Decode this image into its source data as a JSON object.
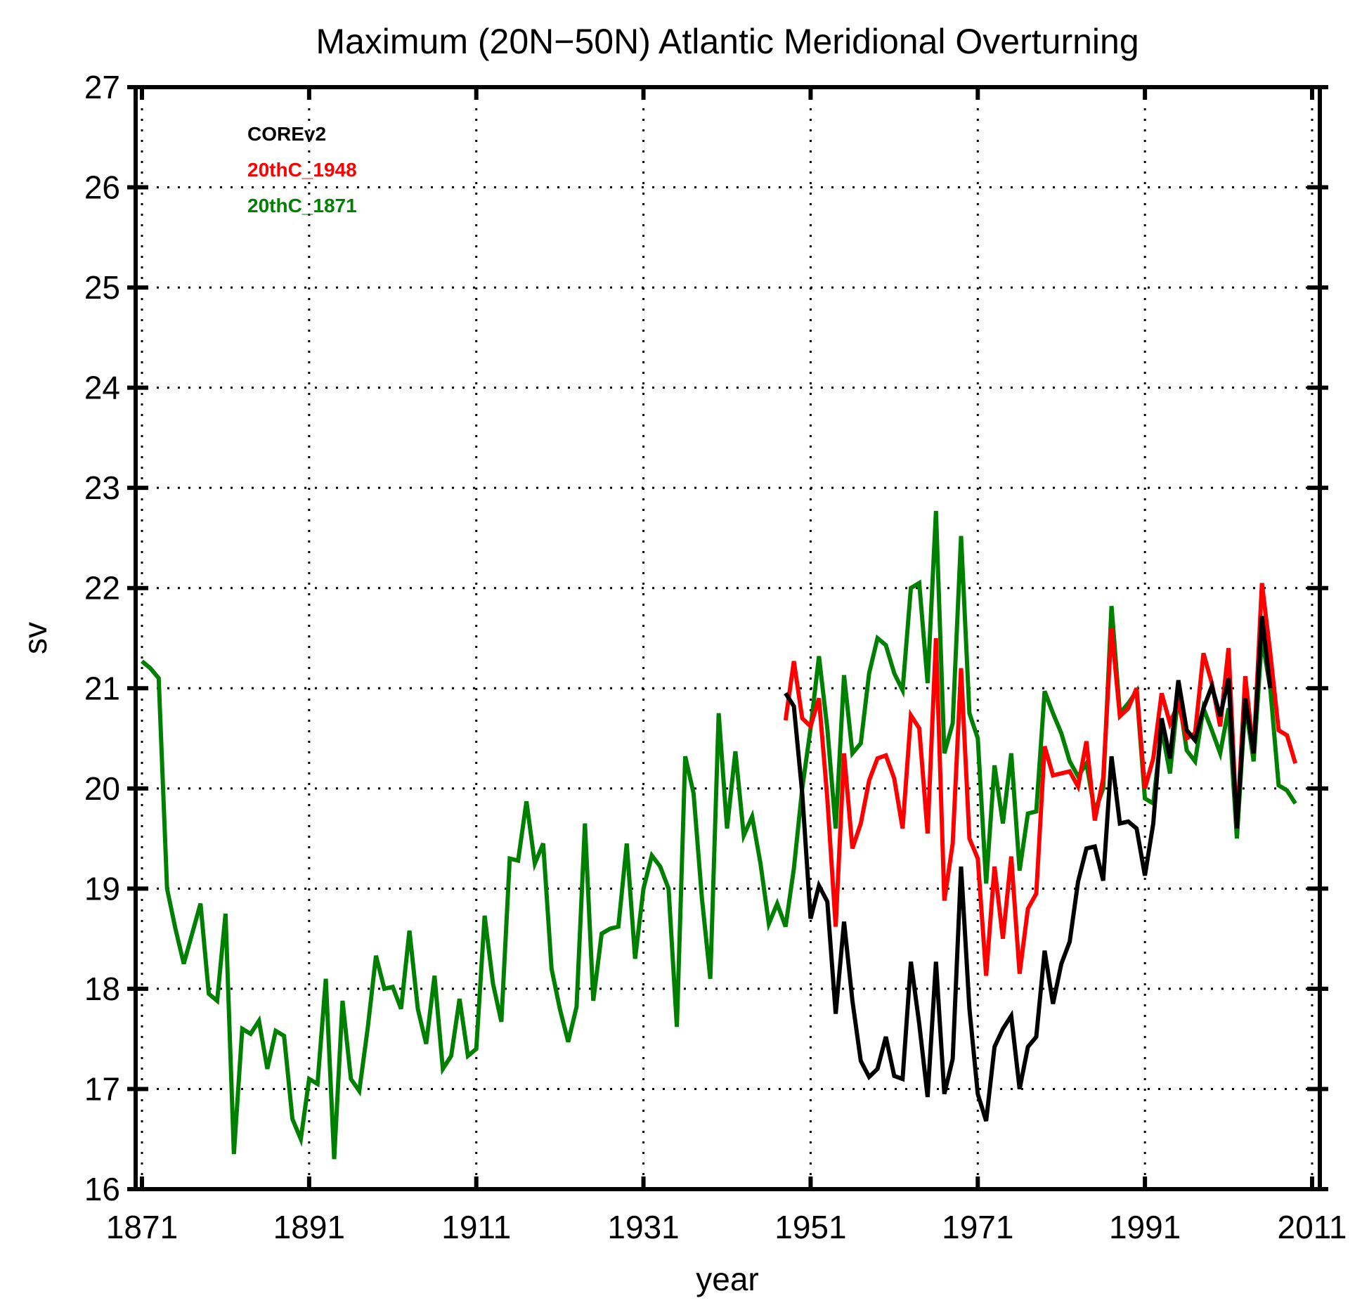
{
  "chart_data": {
    "type": "line",
    "title": "Maximum (20N−50N) Atlantic Meridional Overturning",
    "xlabel": "year",
    "ylabel": "sv",
    "xlim": [
      1871,
      2011
    ],
    "ylim": [
      16,
      27
    ],
    "xticks": [
      "1871",
      "1891",
      "1911",
      "1931",
      "1951",
      "1971",
      "1991",
      "2011"
    ],
    "yticks": [
      "16",
      "17",
      "18",
      "19",
      "20",
      "21",
      "22",
      "23",
      "24",
      "25",
      "26",
      "27"
    ],
    "grid": true,
    "legend_position": "top-left",
    "series": [
      {
        "name": "COREv2",
        "color": "#000000",
        "start_year": 1948,
        "values": [
          20.95,
          20.82,
          19.95,
          18.7,
          19.03,
          18.87,
          17.75,
          18.67,
          17.88,
          17.28,
          17.12,
          17.2,
          17.52,
          17.13,
          17.1,
          18.27,
          17.65,
          16.92,
          18.27,
          16.95,
          17.3,
          19.22,
          17.8,
          16.95,
          16.68,
          17.42,
          17.6,
          17.73,
          17.0,
          17.42,
          17.52,
          18.38,
          17.85,
          18.25,
          18.47,
          19.07,
          19.4,
          19.42,
          19.08,
          20.32,
          19.65,
          19.67,
          19.6,
          19.13,
          19.65,
          20.7,
          20.3,
          21.08,
          20.58,
          20.48,
          20.8,
          21.02,
          20.72,
          21.1,
          19.6,
          20.9,
          20.35,
          21.72,
          21.0
        ]
      },
      {
        "name": "20thC_1948",
        "color": "#ff0000",
        "start_year": 1948,
        "values": [
          20.68,
          21.27,
          20.7,
          20.62,
          20.9,
          19.9,
          18.62,
          20.35,
          19.4,
          19.65,
          20.08,
          20.3,
          20.33,
          20.1,
          19.6,
          20.73,
          20.6,
          19.55,
          21.5,
          18.88,
          19.45,
          21.2,
          19.5,
          19.3,
          18.13,
          19.22,
          18.5,
          19.32,
          18.15,
          18.8,
          18.95,
          20.42,
          20.13,
          20.15,
          20.17,
          20.02,
          20.47,
          19.68,
          20.1,
          21.6,
          20.72,
          20.8,
          21.0,
          20.0,
          20.3,
          20.95,
          20.65,
          20.85,
          20.5,
          20.55,
          21.35,
          21.05,
          20.62,
          21.4,
          19.6,
          21.12,
          20.35,
          22.05,
          21.35,
          20.58,
          20.53,
          20.25
        ]
      },
      {
        "name": "20thC_1871",
        "color": "#008000",
        "start_year": 1871,
        "values": [
          21.27,
          21.2,
          21.1,
          19.0,
          18.6,
          18.25,
          18.55,
          18.85,
          17.95,
          17.88,
          18.75,
          16.35,
          17.6,
          17.55,
          17.68,
          17.2,
          17.58,
          17.53,
          16.7,
          16.5,
          17.1,
          17.05,
          18.1,
          16.3,
          17.88,
          17.1,
          16.98,
          17.6,
          18.33,
          18.0,
          18.02,
          17.8,
          18.58,
          17.8,
          17.45,
          18.13,
          17.2,
          17.33,
          17.9,
          17.33,
          17.4,
          18.73,
          18.05,
          17.67,
          19.3,
          19.28,
          19.87,
          19.25,
          19.45,
          18.2,
          17.8,
          17.47,
          17.82,
          19.65,
          17.88,
          18.55,
          18.6,
          18.62,
          19.45,
          18.3,
          19.0,
          19.33,
          19.22,
          19.0,
          17.62,
          20.32,
          19.95,
          18.9,
          18.1,
          20.75,
          19.6,
          20.37,
          19.53,
          19.72,
          19.25,
          18.65,
          18.85,
          18.62,
          19.2,
          20.0,
          20.6,
          21.32,
          20.6,
          19.6,
          21.13,
          20.35,
          20.45,
          21.15,
          21.5,
          21.43,
          21.15,
          20.98,
          22.0,
          22.05,
          21.05,
          22.77,
          20.35,
          20.65,
          22.52,
          20.75,
          20.5,
          19.05,
          20.23,
          19.65,
          20.35,
          19.18,
          19.75,
          19.77,
          20.97,
          20.75,
          20.55,
          20.27,
          20.12,
          20.25,
          19.77,
          20.0,
          21.82,
          20.75,
          20.85,
          20.97,
          19.9,
          19.85,
          20.6,
          20.15,
          20.95,
          20.38,
          20.27,
          20.8,
          20.58,
          20.35,
          20.8,
          19.5,
          20.85,
          20.27,
          21.5,
          21.0,
          20.03,
          19.98,
          19.85
        ]
      }
    ]
  }
}
